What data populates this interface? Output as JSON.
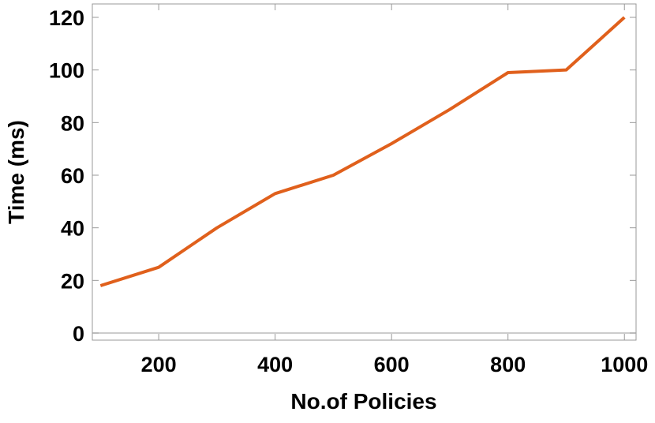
{
  "chart_data": {
    "type": "line",
    "x_label": "No.of Policies",
    "y_label": "Time (ms)",
    "x": [
      100,
      200,
      300,
      400,
      500,
      600,
      700,
      800,
      900,
      1000
    ],
    "series": [
      {
        "color": "#e0601c",
        "values": [
          18,
          25,
          40,
          53,
          60,
          72,
          85,
          99,
          100,
          120
        ]
      }
    ],
    "xlim": [
      86,
      1020
    ],
    "ylim": [
      -2.7,
      125.1
    ],
    "xticks": [
      200,
      400,
      600,
      800,
      1000
    ],
    "yticks": [
      0,
      20,
      40,
      60,
      80,
      100,
      120
    ]
  }
}
